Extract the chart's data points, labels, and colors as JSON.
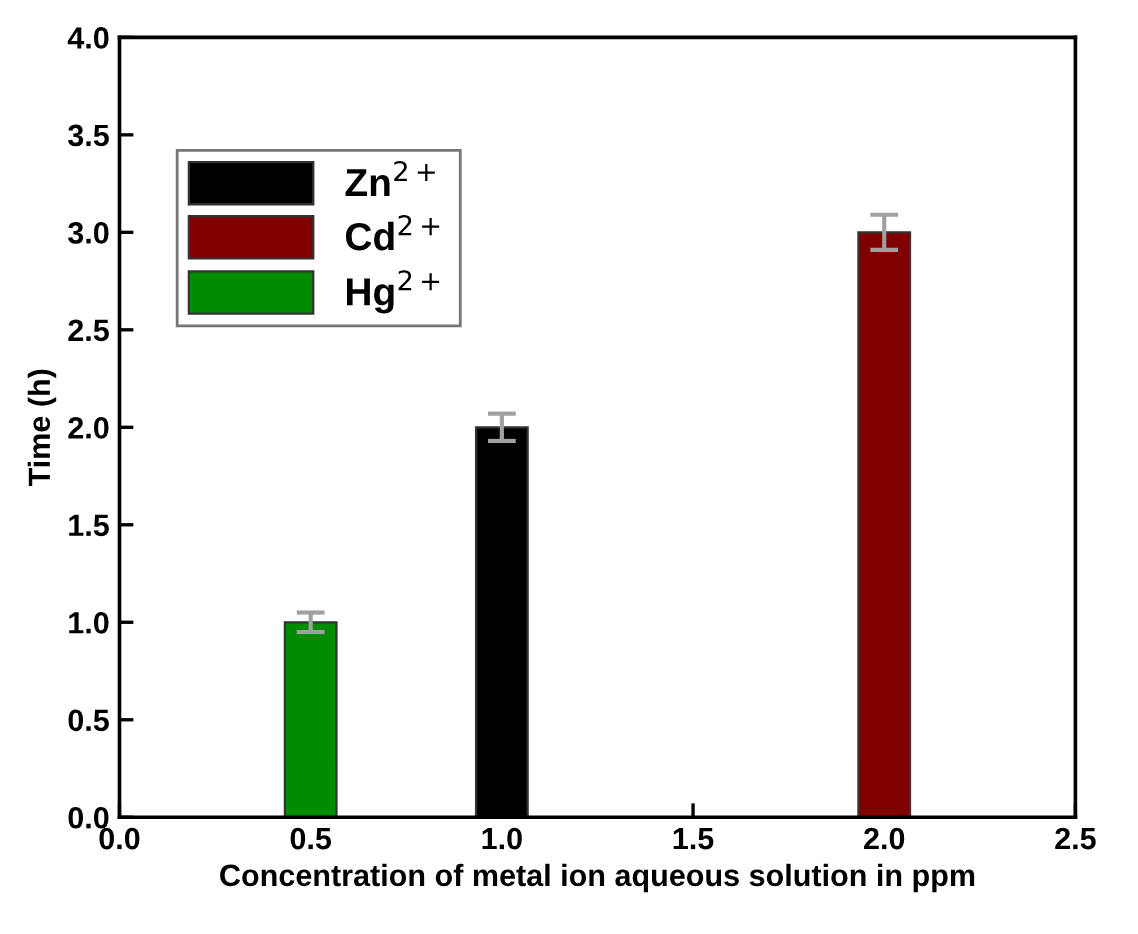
{
  "chart_data": {
    "type": "bar",
    "xlabel": "Concentration of metal ion aqueous solution in ppm",
    "ylabel": "Time (h)",
    "series": [
      {
        "name": "Zn$^{2+}$",
        "color": "#000000",
        "x": [
          1.0
        ],
        "values": [
          2.0
        ],
        "errors": [
          0.07
        ]
      },
      {
        "name": "Cd$^{2+}$",
        "color": "#800000",
        "x": [
          2.0
        ],
        "values": [
          3.0
        ],
        "errors": [
          0.09
        ]
      },
      {
        "name": "Hg$^{2+}$",
        "color": "#008c00",
        "x": [
          0.5
        ],
        "values": [
          1.0
        ],
        "errors": [
          0.05
        ]
      }
    ],
    "xlim": [
      0.0,
      2.5
    ],
    "xticks": [
      {
        "value": 0,
        "label": "0.0"
      },
      0.5,
      {
        "value": 1,
        "label": "1.0"
      },
      1.5,
      {
        "value": 2,
        "label": "2.0"
      },
      2.5
    ],
    "ylim": [
      0.0,
      4.0
    ],
    "yticks": [
      {
        "value": 0,
        "label": "0.0"
      },
      0.5,
      {
        "value": 1,
        "label": "1.0"
      },
      1.5,
      {
        "value": 2,
        "label": "2.0"
      },
      2.5,
      {
        "value": 3,
        "label": "3.0"
      },
      3.5,
      {
        "value": 4,
        "label": "4.0"
      }
    ],
    "legend": "top left",
    "grid": false
  }
}
